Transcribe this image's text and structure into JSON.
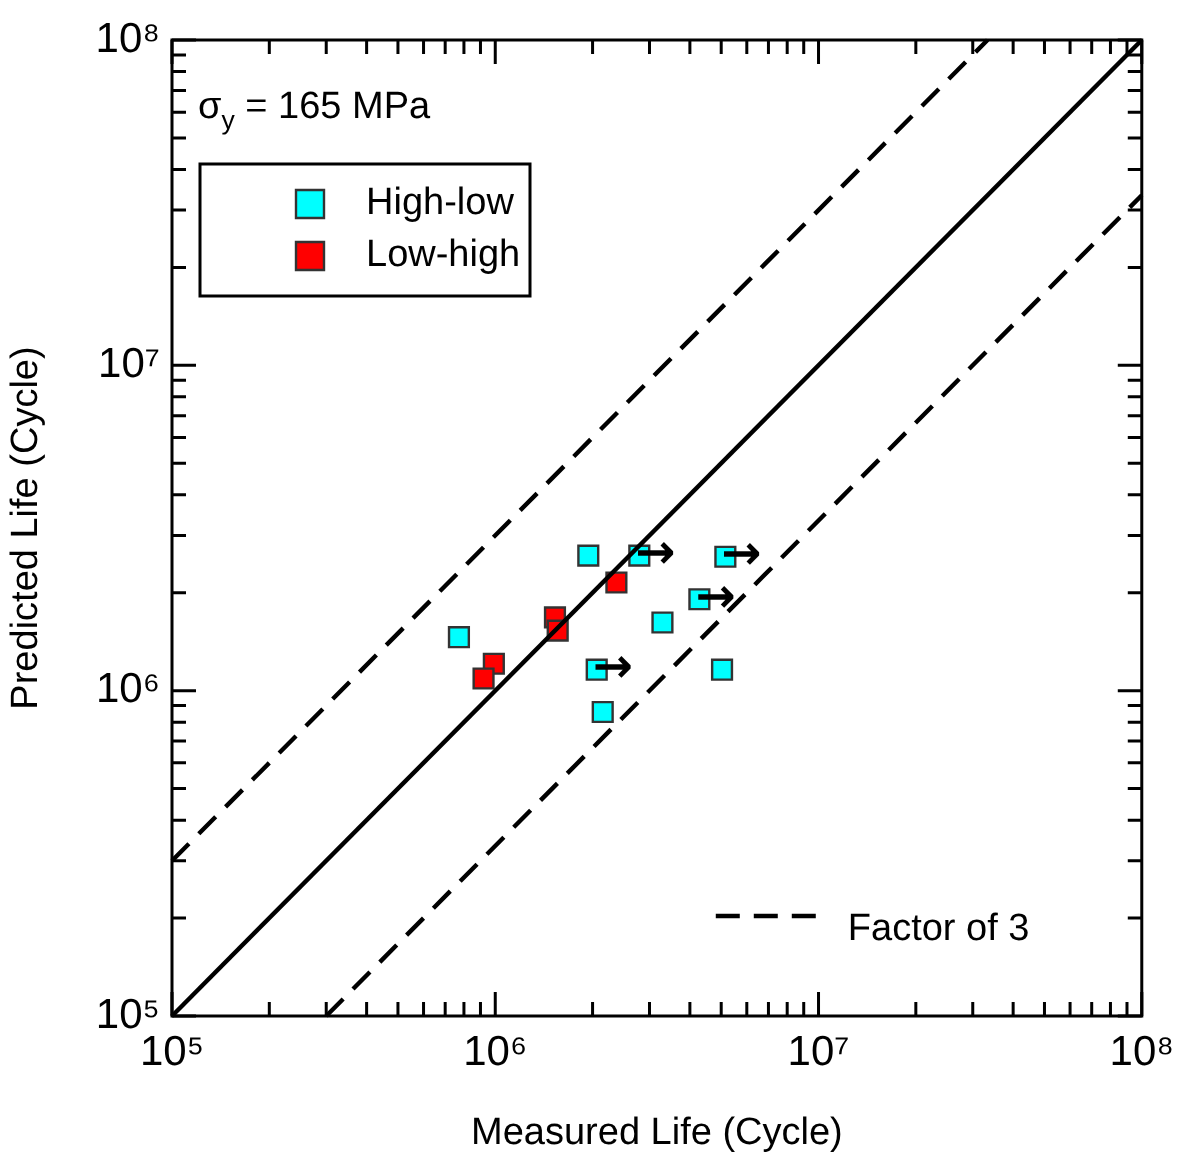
{
  "chart_data": {
    "type": "scatter",
    "xlabel": "Measured Life (Cycle)",
    "ylabel": "Predicted Life (Cycle)",
    "log": "xy",
    "grid": false,
    "legend": "top left",
    "marker": "square",
    "annotations": [
      "σ$_{y}$ = 165 MPa",
      {
        "text": "Factor of 3"
      },
      {
        "text": "→",
        "x": 2790000,
        "y": 2600000
      },
      {
        "text": "→",
        "x": 5150000,
        "y": 2580000
      },
      {
        "text": "→",
        "x": 4280000,
        "y": 1910000
      },
      {
        "text": "→",
        "x": 2060000,
        "y": 1160000
      }
    ],
    "xlim": [
      100000,
      100000000
    ],
    "ylim": [
      100000,
      100000000
    ],
    "xticks": [
      {
        "value": 100000,
        "label": "10⁵"
      },
      {
        "value": 200000,
        "label": null
      },
      {
        "value": 300000,
        "label": null
      },
      {
        "value": 400000,
        "label": null
      },
      {
        "value": 500000,
        "label": null
      },
      {
        "value": 600000,
        "label": null
      },
      {
        "value": 700000,
        "label": null
      },
      {
        "value": 800000,
        "label": null
      },
      {
        "value": 900000,
        "label": null
      },
      {
        "value": 1000000,
        "label": "10⁶"
      },
      {
        "value": 2000000,
        "label": null
      },
      {
        "value": 3000000,
        "label": null
      },
      {
        "value": 4000000,
        "label": null
      },
      {
        "value": 5000000,
        "label": null
      },
      {
        "value": 6000000,
        "label": null
      },
      {
        "value": 7000000,
        "label": null
      },
      {
        "value": 8000000,
        "label": null
      },
      {
        "value": 9000000,
        "label": null
      },
      {
        "value": 10000000,
        "label": "10⁷"
      },
      {
        "value": 20000000,
        "label": null
      },
      {
        "value": 30000000,
        "label": null
      },
      {
        "value": 40000000,
        "label": null
      },
      {
        "value": 50000000,
        "label": null
      },
      {
        "value": 60000000,
        "label": null
      },
      {
        "value": 70000000,
        "label": null
      },
      {
        "value": 80000000,
        "label": null
      },
      {
        "value": 90000000,
        "label": null
      },
      {
        "value": 100000000,
        "label": "10⁸"
      }
    ],
    "yticks": [
      {
        "value": 100000,
        "label": "10⁵"
      },
      {
        "value": 200000,
        "label": null
      },
      {
        "value": 300000,
        "label": null
      },
      {
        "value": 400000,
        "label": null
      },
      {
        "value": 500000,
        "label": null
      },
      {
        "value": 600000,
        "label": null
      },
      {
        "value": 700000,
        "label": null
      },
      {
        "value": 800000,
        "label": null
      },
      {
        "value": 900000,
        "label": null
      },
      {
        "value": 1000000,
        "label": "10⁶"
      },
      {
        "value": 2000000,
        "label": null
      },
      {
        "value": 3000000,
        "label": null
      },
      {
        "value": 4000000,
        "label": null
      },
      {
        "value": 5000000,
        "label": null
      },
      {
        "value": 6000000,
        "label": null
      },
      {
        "value": 7000000,
        "label": null
      },
      {
        "value": 8000000,
        "label": null
      },
      {
        "value": 9000000,
        "label": null
      },
      {
        "value": 10000000,
        "label": "10⁷"
      },
      {
        "value": 20000000,
        "label": null
      },
      {
        "value": 30000000,
        "label": null
      },
      {
        "value": 40000000,
        "label": null
      },
      {
        "value": 50000000,
        "label": null
      },
      {
        "value": 60000000,
        "label": null
      },
      {
        "value": 70000000,
        "label": null
      },
      {
        "value": 80000000,
        "label": null
      },
      {
        "value": 90000000,
        "label": null
      },
      {
        "value": 100000000,
        "label": "10⁸"
      }
    ],
    "series": [
      {
        "type": "line",
        "color": "#000000",
        "line_style": "solid",
        "marker": "none",
        "x": [
          100000,
          100000000
        ],
        "values": [
          100000,
          100000000
        ]
      },
      {
        "type": "line",
        "color": "#000000",
        "line_style": "dashed",
        "marker": "none",
        "x": [
          100000,
          33333333
        ],
        "values": [
          300000,
          100000000
        ]
      },
      {
        "type": "line",
        "color": "#000000",
        "line_style": "dashed",
        "marker": "none",
        "x": [
          300000,
          100000000
        ],
        "values": [
          100000,
          33333333
        ]
      },
      {
        "name": "High-low",
        "color": "#00ffff",
        "x": [
          1940000,
          2790000,
          5150000,
          4280000,
          3290000,
          772000,
          2060000,
          5030000,
          2150000
        ],
        "values": [
          2600000,
          2600000,
          2580000,
          1910000,
          1620000,
          1460000,
          1160000,
          1160000,
          860000
        ]
      },
      {
        "name": "Low-high",
        "color": "#ff0000",
        "x": [
          2370000,
          1530000,
          1560000,
          990000,
          920000
        ],
        "values": [
          2150000,
          1680000,
          1530000,
          1210000,
          1090000
        ]
      }
    ]
  }
}
